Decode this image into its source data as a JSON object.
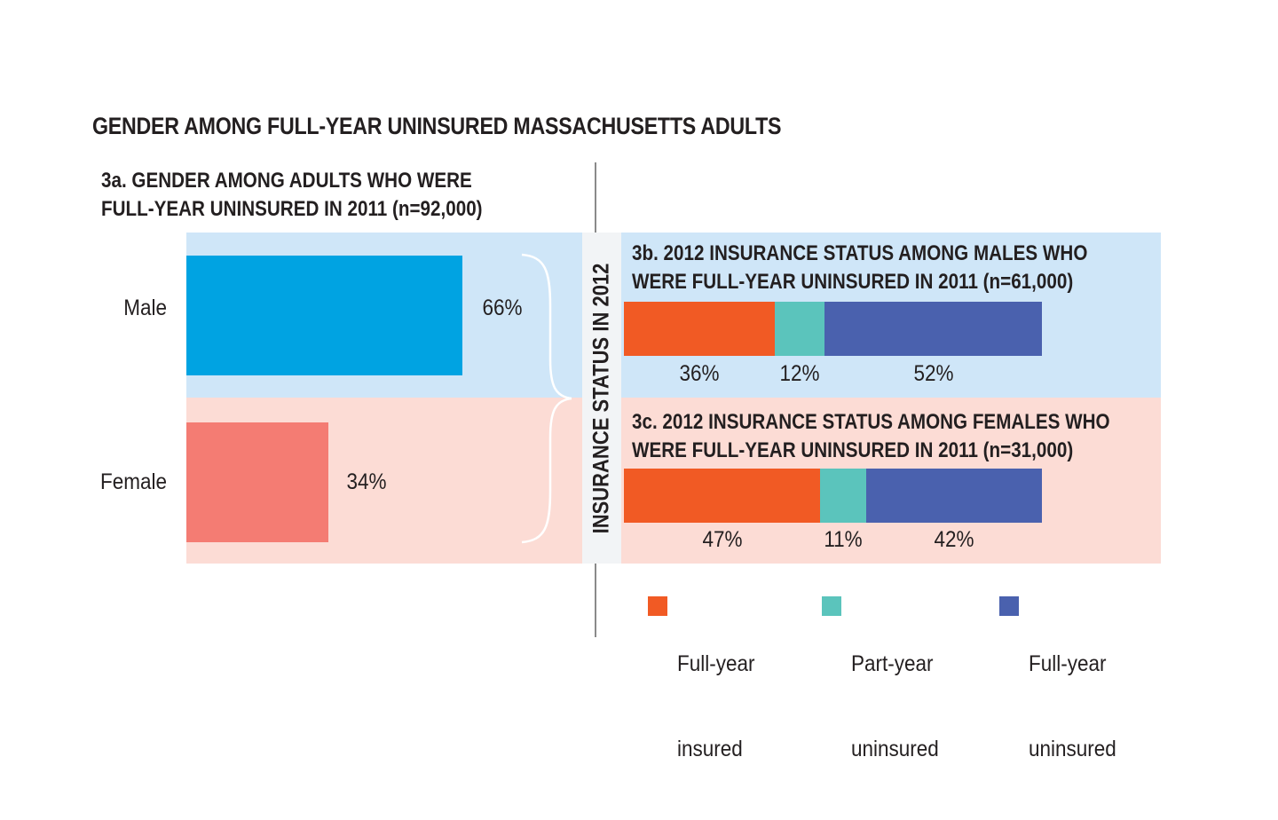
{
  "title": "GENDER AMONG FULL-YEAR UNINSURED MASSACHUSETTS ADULTS",
  "side_label": "INSURANCE STATUS IN 2012",
  "colors": {
    "male_bg": "#cfe6f8",
    "female_bg": "#fcdcd5",
    "male_bar": "#00a3e2",
    "female_bar": "#f47c73",
    "full_year_insured": "#f15a24",
    "part_year_uninsured": "#5bc4bc",
    "full_year_uninsured": "#4a61ae"
  },
  "legend": [
    {
      "key": "full_year_insured",
      "line1": "Full-year",
      "line2": "insured"
    },
    {
      "key": "part_year_uninsured",
      "line1": "Part-year",
      "line2": "uninsured"
    },
    {
      "key": "full_year_uninsured",
      "line1": "Full-year",
      "line2": "uninsured"
    }
  ],
  "chart_data": [
    {
      "type": "bar",
      "orientation": "horizontal",
      "title_line1": "3a. GENDER AMONG ADULTS WHO WERE",
      "title_line2": "FULL-YEAR UNINSURED IN 2011 (n=92,000)",
      "categories": [
        "Male",
        "Female"
      ],
      "values": [
        66,
        34
      ],
      "value_labels": [
        "66%",
        "34%"
      ],
      "unit": "%"
    },
    {
      "type": "bar",
      "stacked": true,
      "orientation": "horizontal",
      "title_line1": "3b. 2012 INSURANCE STATUS AMONG MALES WHO",
      "title_line2": "WERE FULL-YEAR UNINSURED IN 2011 (n=61,000)",
      "series": [
        {
          "key": "full_year_insured",
          "value": 36,
          "label": "36%"
        },
        {
          "key": "part_year_uninsured",
          "value": 12,
          "label": "12%"
        },
        {
          "key": "full_year_uninsured",
          "value": 52,
          "label": "52%"
        }
      ]
    },
    {
      "type": "bar",
      "stacked": true,
      "orientation": "horizontal",
      "title_line1": "3c. 2012 INSURANCE STATUS AMONG FEMALES WHO",
      "title_line2": "WERE FULL-YEAR UNINSURED IN 2011 (n=31,000)",
      "series": [
        {
          "key": "full_year_insured",
          "value": 47,
          "label": "47%"
        },
        {
          "key": "part_year_uninsured",
          "value": 11,
          "label": "11%"
        },
        {
          "key": "full_year_uninsured",
          "value": 42,
          "label": "42%"
        }
      ]
    }
  ]
}
